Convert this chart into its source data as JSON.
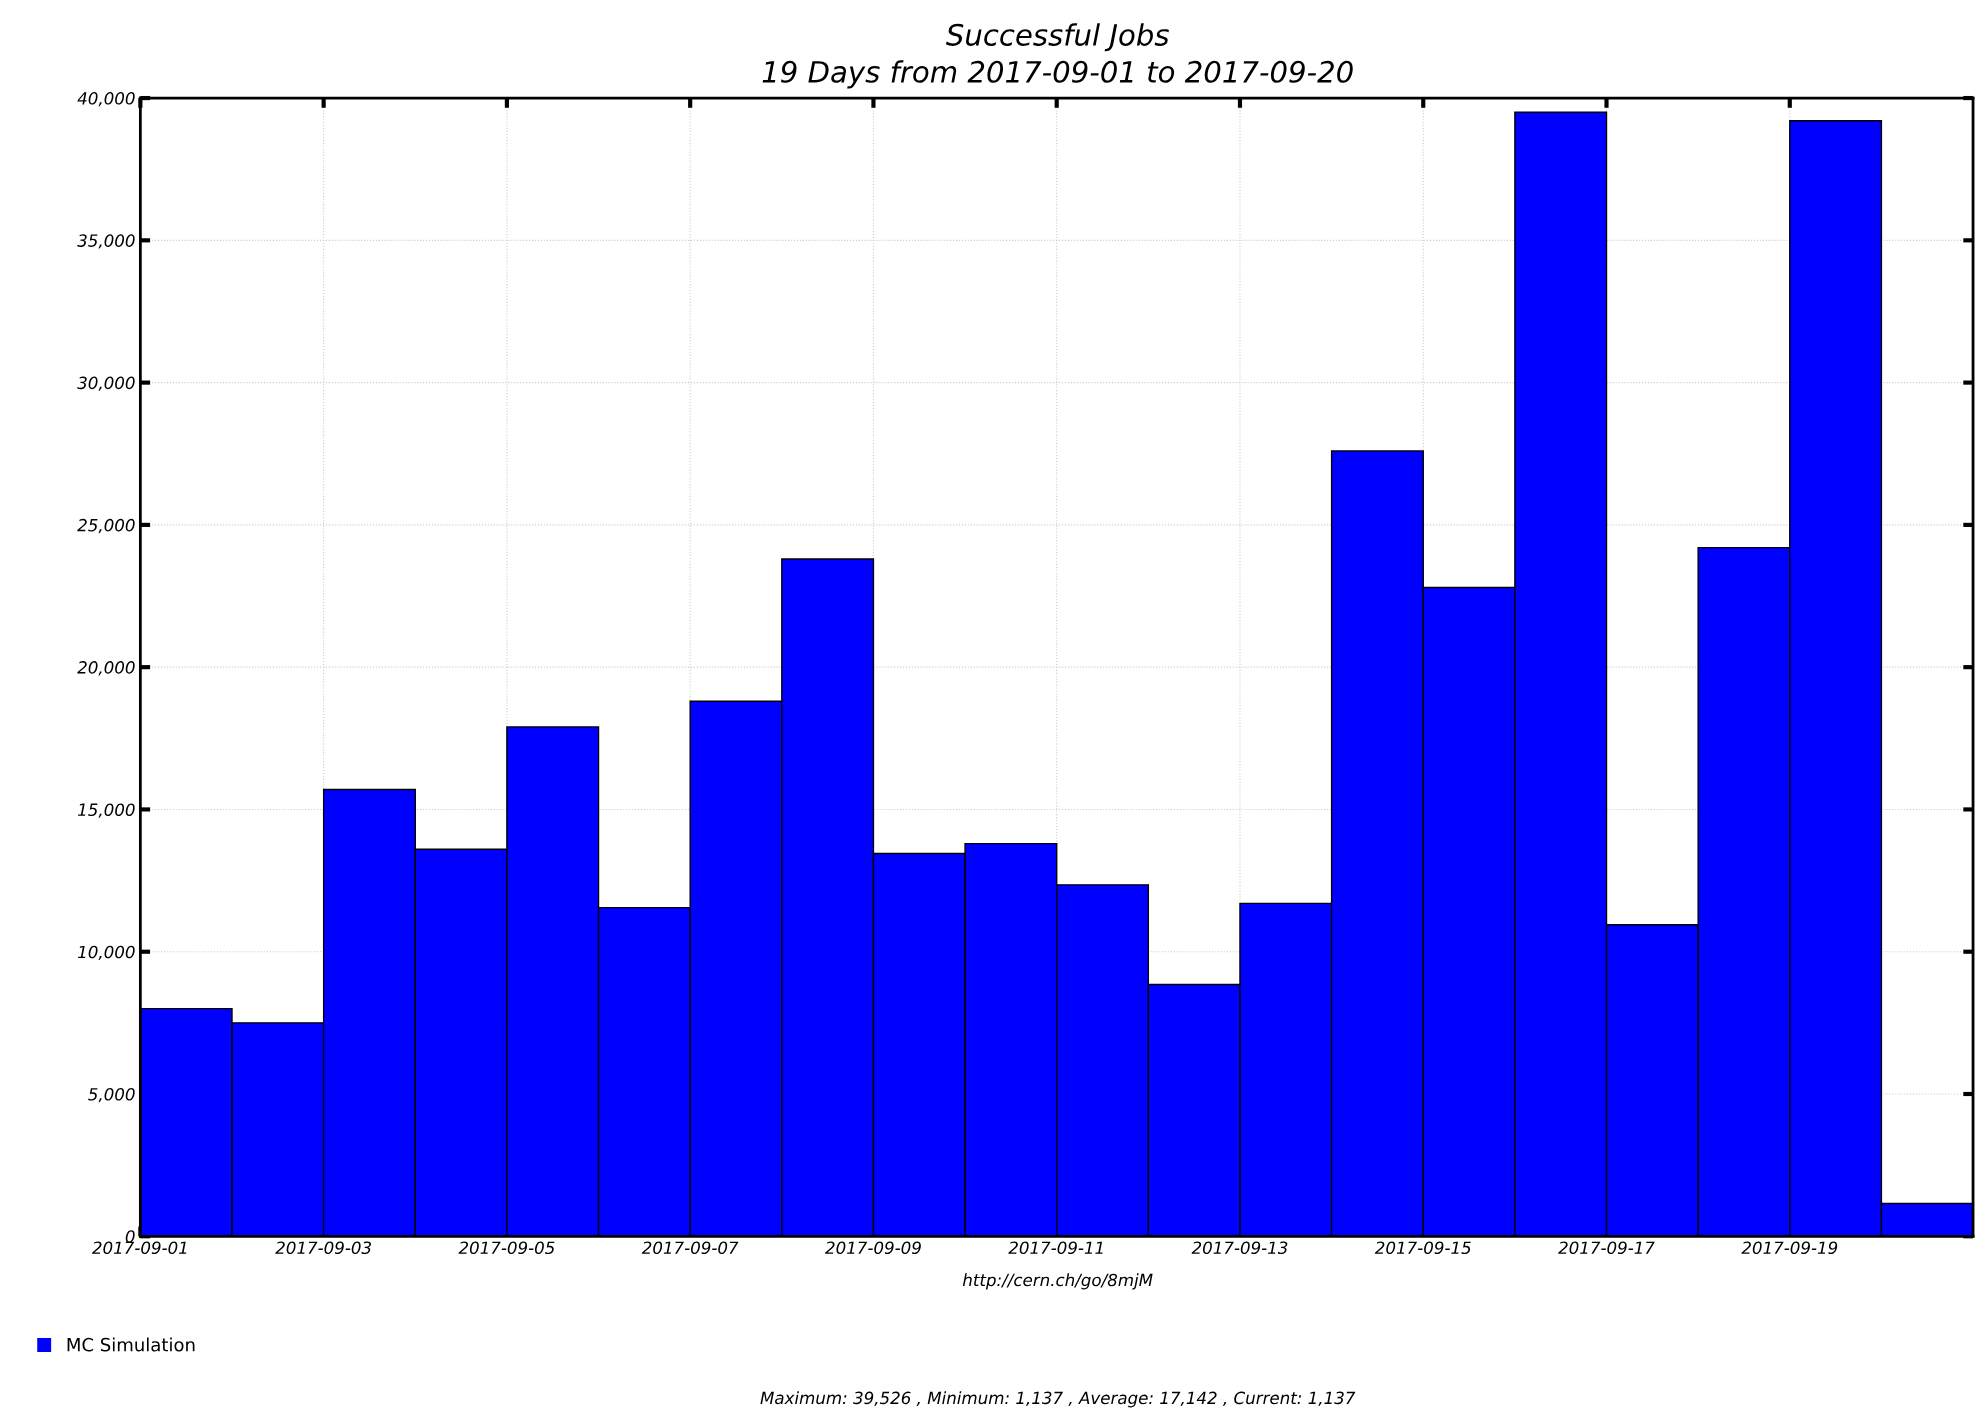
{
  "chart_data": {
    "type": "bar",
    "title": "Successful Jobs",
    "subtitle": "19 Days from 2017-09-01 to 2017-09-20",
    "x": [
      "2017-09-01T12:00",
      "2017-09-02T12:00",
      "2017-09-03T12:00",
      "2017-09-04T12:00",
      "2017-09-05T12:00",
      "2017-09-06T12:00",
      "2017-09-07T12:00",
      "2017-09-08T12:00",
      "2017-09-09T12:00",
      "2017-09-10T12:00",
      "2017-09-11T12:00",
      "2017-09-12T12:00",
      "2017-09-13T12:00",
      "2017-09-14T12:00",
      "2017-09-15T12:00",
      "2017-09-16T12:00",
      "2017-09-17T12:00",
      "2017-09-18T12:00",
      "2017-09-19T12:00",
      "2017-09-20T12:00"
    ],
    "series": [
      {
        "name": "MC Simulation",
        "color": "#0000ff",
        "values": [
          8000,
          7500,
          15700,
          13600,
          17900,
          11550,
          18800,
          23800,
          13450,
          13800,
          12350,
          8850,
          11700,
          27600,
          22800,
          39500,
          10950,
          24200,
          39200,
          1150
        ]
      }
    ],
    "xlim": [
      "2017-09-01",
      "2017-09-21"
    ],
    "xticks": [
      "2017-09-01",
      "2017-09-03",
      "2017-09-05",
      "2017-09-07",
      "2017-09-09",
      "2017-09-11",
      "2017-09-13",
      "2017-09-15",
      "2017-09-17",
      "2017-09-19"
    ],
    "ylim": [
      0,
      40000
    ],
    "yticks": [
      {
        "value": 0,
        "label": "0"
      },
      {
        "value": 5000,
        "label": "5,000"
      },
      {
        "value": 10000,
        "label": "10,000"
      },
      {
        "value": 15000,
        "label": "15,000"
      },
      {
        "value": 20000,
        "label": "20,000"
      },
      {
        "value": 25000,
        "label": "25,000"
      },
      {
        "value": 30000,
        "label": "30,000"
      },
      {
        "value": 35000,
        "label": "35,000"
      },
      {
        "value": 40000,
        "label": "40,000"
      }
    ],
    "grid": true,
    "line_style": "dotted",
    "legend": "bottom left",
    "annotations": [
      "http://cern.ch/go/8mjM",
      "Maximum: 39,526 , Minimum: 1,137 , Average: 17,142 , Current: 1,137"
    ]
  }
}
